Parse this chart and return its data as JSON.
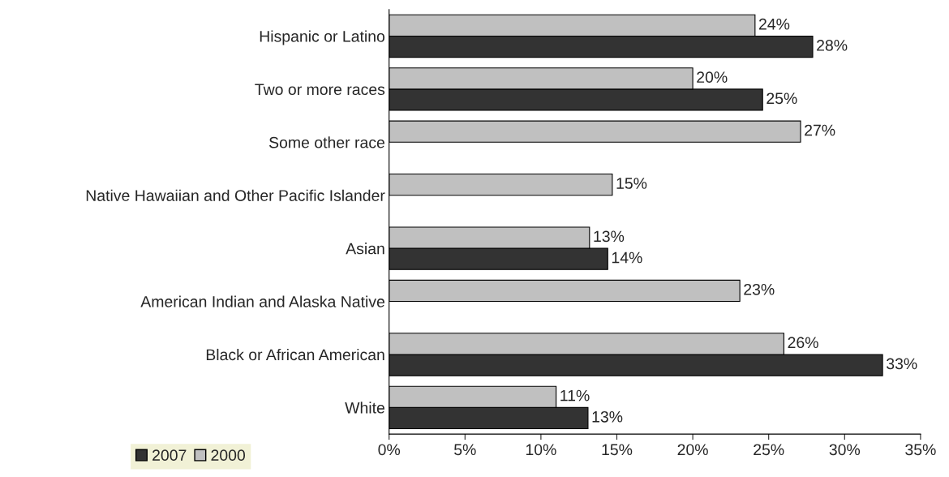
{
  "chart_data": {
    "type": "bar",
    "orientation": "horizontal",
    "categories": [
      "Hispanic or Latino",
      "Two or more races",
      "Some other race",
      "Native Hawaiian and Other Pacific Islander",
      "Asian",
      "American Indian and Alaska Native",
      "Black or African American",
      "White"
    ],
    "series": [
      {
        "name": "2007",
        "color": "#333333",
        "values": [
          27.9,
          24.6,
          null,
          null,
          14.4,
          null,
          32.5,
          13.1
        ],
        "value_labels": [
          "28%",
          "25%",
          null,
          null,
          "14%",
          null,
          "33%",
          "13%"
        ]
      },
      {
        "name": "2000",
        "color": "#c0c0c0",
        "values": [
          24.1,
          20.0,
          27.1,
          14.7,
          13.2,
          23.1,
          26.0,
          11.0
        ],
        "value_labels": [
          "24%",
          "20%",
          "27%",
          "15%",
          "13%",
          "23%",
          "26%",
          "11%"
        ]
      }
    ],
    "xlim": [
      0,
      35
    ],
    "xticks": [
      {
        "value": 0,
        "label": "0%"
      },
      {
        "value": 5,
        "label": "5%"
      },
      {
        "value": 10,
        "label": "10%"
      },
      {
        "value": 15,
        "label": "15%"
      },
      {
        "value": 20,
        "label": "20%"
      },
      {
        "value": 25,
        "label": "25%"
      },
      {
        "value": 30,
        "label": "30%"
      },
      {
        "value": 35,
        "label": "35%"
      }
    ],
    "grid": false,
    "legend": "bottom left"
  }
}
